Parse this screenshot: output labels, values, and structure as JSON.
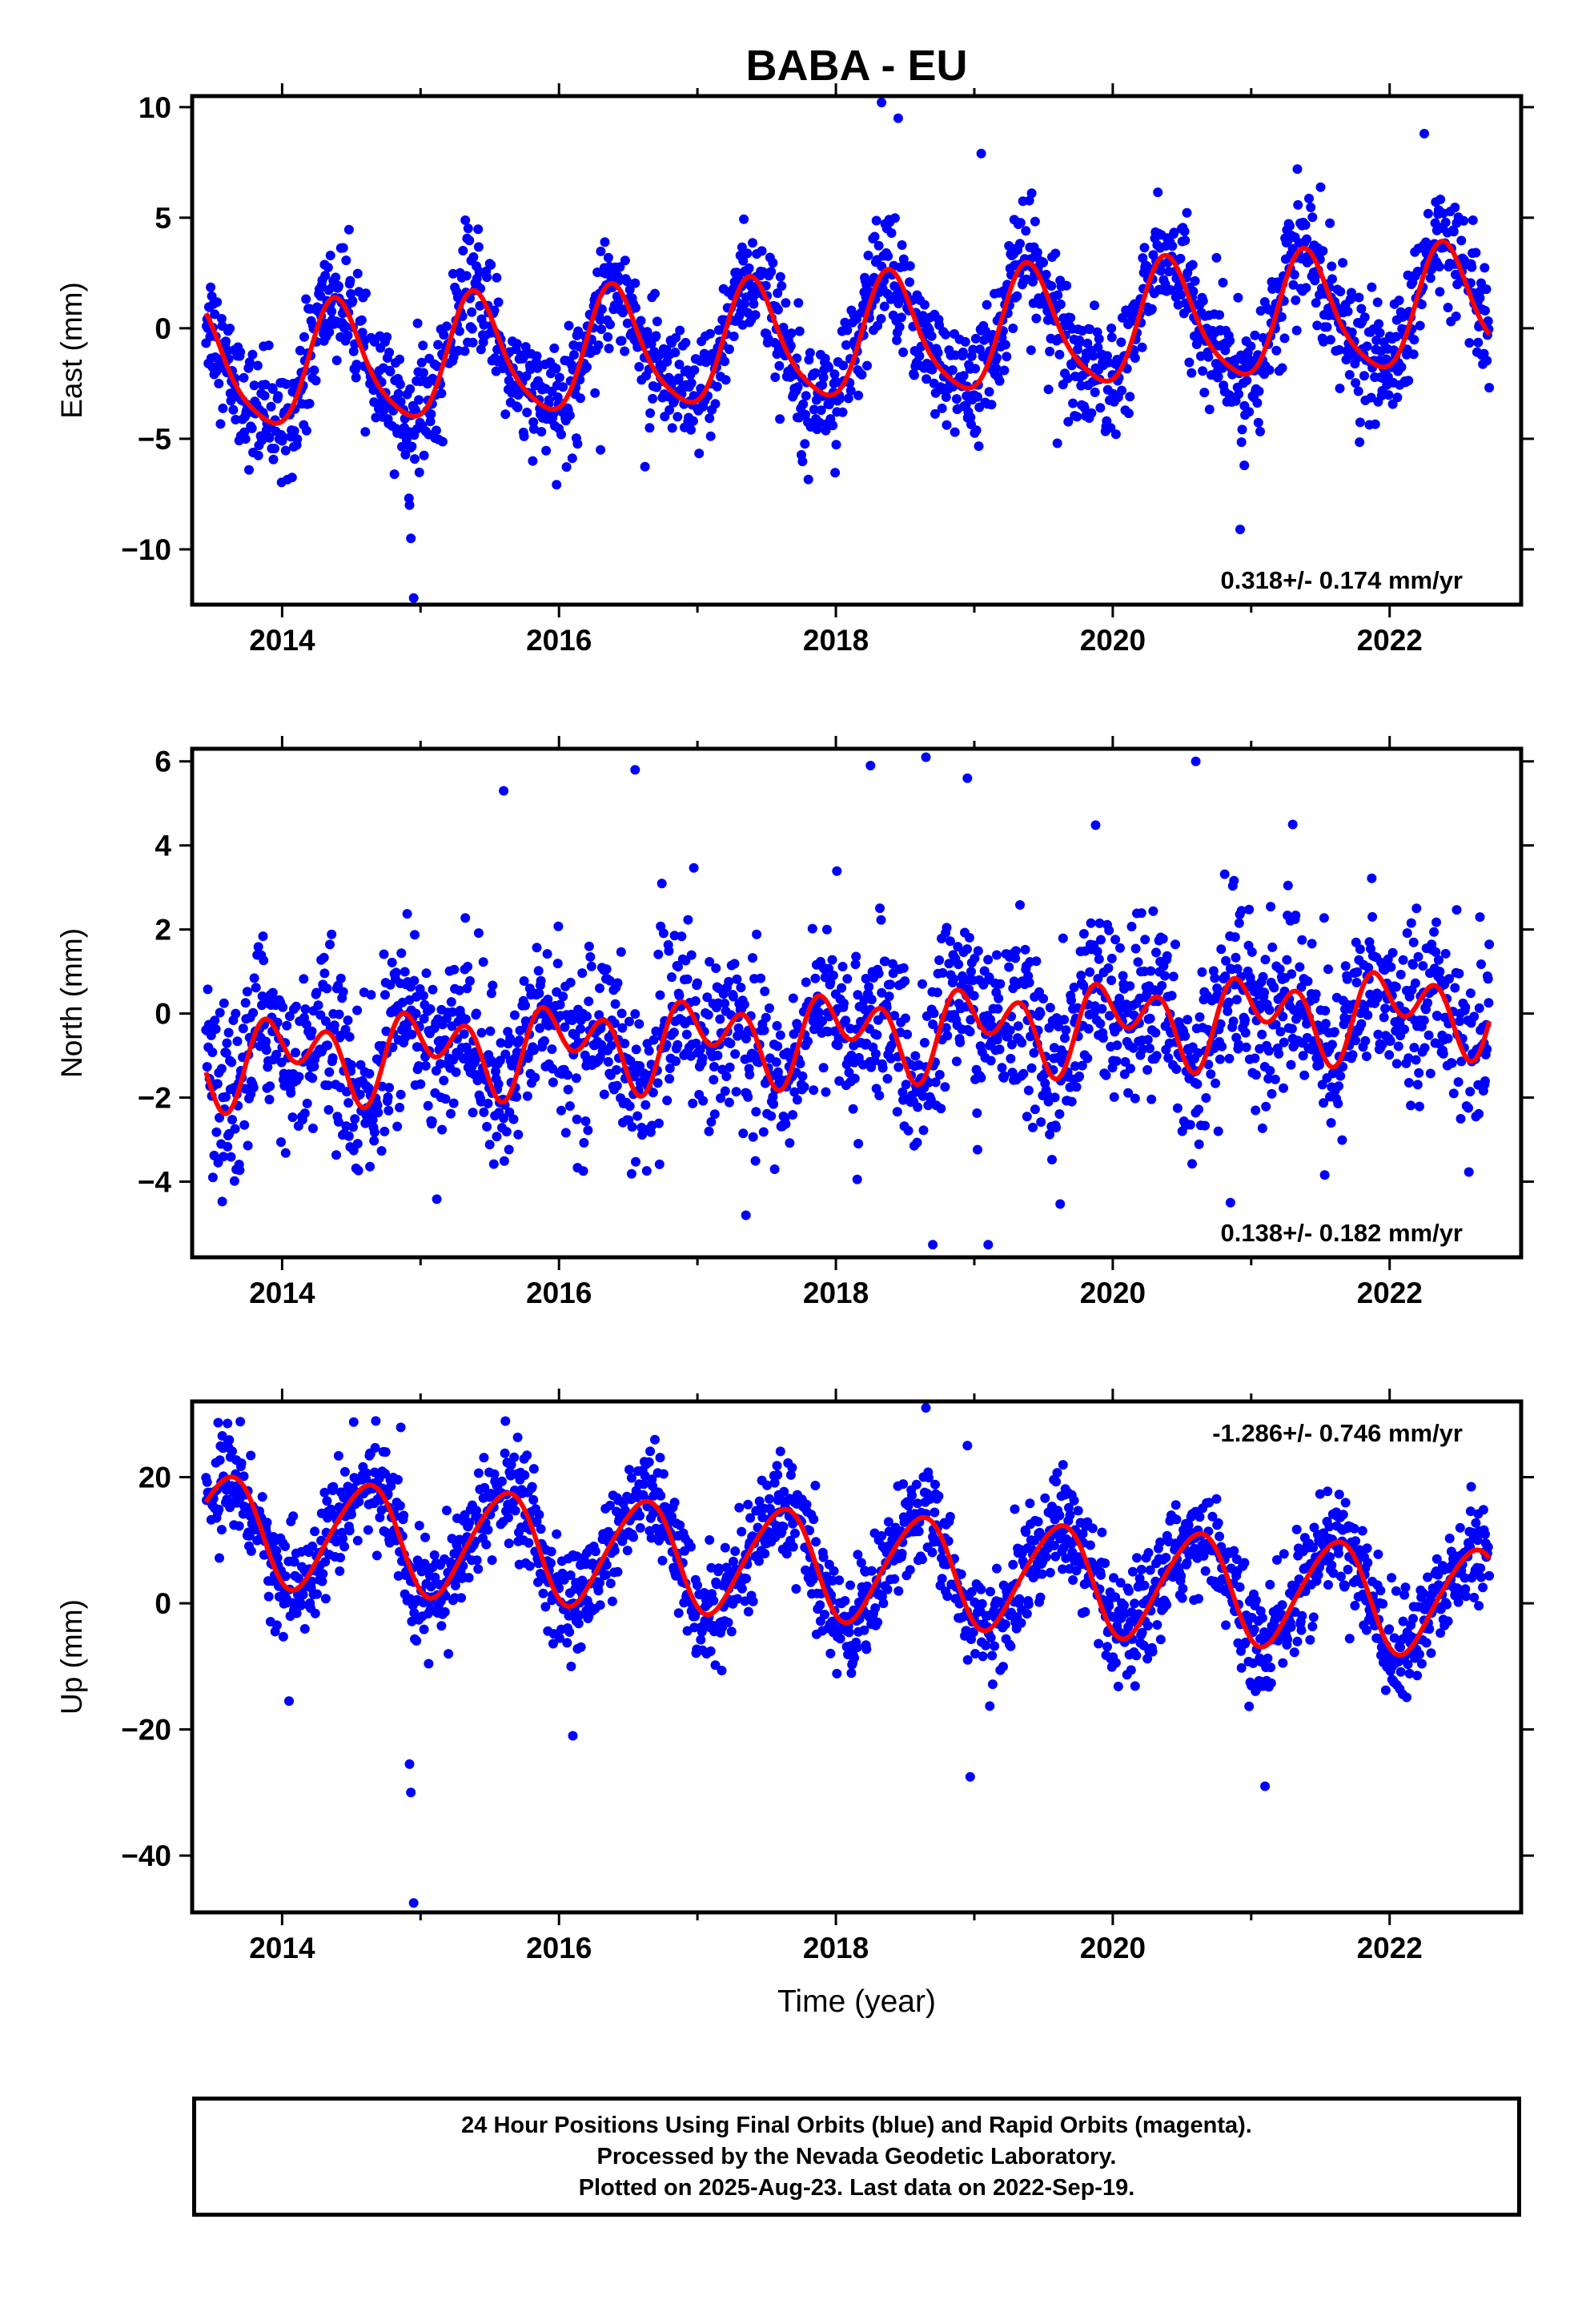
{
  "chart_data": {
    "type": "scatter",
    "title": "BABA - EU",
    "xlabel": "Time (year)",
    "x_ticks": [
      "2014",
      "2016",
      "2018",
      "2020",
      "2022"
    ],
    "x_range": [
      2013.35,
      2022.95
    ],
    "colors": {
      "points": "#0000ff",
      "fit": "#ff0000",
      "frame": "#000000"
    },
    "series_names": [
      "Final Orbits (blue)",
      "Rapid Orbits (magenta)"
    ],
    "panels": [
      {
        "id": "east",
        "ylabel": "East (mm)",
        "ylim": [
          -12.5,
          10.5
        ],
        "y_ticks": [
          "10",
          "5",
          "0",
          "−5",
          "−10"
        ],
        "y_tick_values": [
          10,
          5,
          0,
          -5,
          -10
        ],
        "rate_label": "0.318+/- 0.174 mm/yr",
        "rate_position": "bottom-right",
        "fit": {
          "offset": -0.6,
          "trend_mm_per_yr": 0.318,
          "annual_amp": 2.7,
          "annual_peak_year_frac": 0.4,
          "semiannual_amp": 0.5,
          "semiannual_peak_year_frac": 0.35
        },
        "scatter_std": 1.3,
        "outliers": [
          [
            2014.95,
            -12.2
          ],
          [
            2014.93,
            -9.5
          ],
          [
            2014.92,
            -8.0
          ],
          [
            2018.33,
            10.3
          ],
          [
            2018.45,
            9.5
          ],
          [
            2019.05,
            7.9
          ],
          [
            2020.92,
            -9.1
          ],
          [
            2020.95,
            -6.2
          ],
          [
            2022.25,
            8.8
          ],
          [
            2016.3,
            -5.5
          ],
          [
            2019.6,
            -5.2
          ]
        ]
      },
      {
        "id": "north",
        "ylabel": "North (mm)",
        "ylim": [
          -5.8,
          6.3
        ],
        "y_ticks": [
          "6",
          "4",
          "2",
          "0",
          "−2",
          "−4"
        ],
        "y_tick_values": [
          6,
          4,
          2,
          0,
          -2,
          -4
        ],
        "rate_label": "0.138+/- 0.182 mm/yr",
        "rate_position": "bottom-right",
        "fit": {
          "offset": -0.5,
          "trend_mm_per_yr": 0.138,
          "annual_amp": 0.6,
          "annual_peak_year_frac": 0.05,
          "semiannual_amp": 0.7,
          "semiannual_peak_year_frac": 0.35
        },
        "scatter_std": 1.0,
        "outliers": [
          [
            2015.6,
            5.3
          ],
          [
            2016.55,
            5.8
          ],
          [
            2018.25,
            5.9
          ],
          [
            2018.65,
            6.1
          ],
          [
            2018.95,
            5.6
          ],
          [
            2020.6,
            6.0
          ],
          [
            2018.7,
            -5.5
          ],
          [
            2019.1,
            -5.5
          ],
          [
            2017.35,
            -4.8
          ],
          [
            2020.85,
            -4.5
          ],
          [
            2013.5,
            -3.9
          ],
          [
            2021.3,
            4.5
          ]
        ]
      },
      {
        "id": "up",
        "ylabel": "Up (mm)",
        "ylim": [
          -49,
          32
        ],
        "y_ticks": [
          "20",
          "0",
          "−20",
          "−40"
        ],
        "y_tick_values": [
          20,
          0,
          -20,
          -40
        ],
        "rate_label": "-1.286+/- 0.746 mm/yr",
        "rate_position": "top-right",
        "fit": {
          "offset": 6.0,
          "trend_mm_per_yr": -1.286,
          "annual_amp": 8.5,
          "annual_peak_year_frac": 0.6,
          "semiannual_amp": 1.0,
          "semiannual_peak_year_frac": 0.25
        },
        "scatter_std": 4.2,
        "outliers": [
          [
            2014.95,
            -47.5
          ],
          [
            2014.93,
            -30.0
          ],
          [
            2014.92,
            -25.5
          ],
          [
            2018.65,
            31.0
          ],
          [
            2018.95,
            25.0
          ],
          [
            2018.97,
            -27.5
          ],
          [
            2021.1,
            -29.0
          ],
          [
            2014.05,
            -15.5
          ],
          [
            2016.1,
            -21.0
          ]
        ]
      }
    ]
  },
  "caption": {
    "line1": "24 Hour Positions Using Final Orbits (blue) and Rapid Orbits (magenta).",
    "line2": "Processed by the Nevada Geodetic Laboratory.",
    "line3": "Plotted on 2025-Aug-23. Last data on 2022-Sep-19."
  }
}
